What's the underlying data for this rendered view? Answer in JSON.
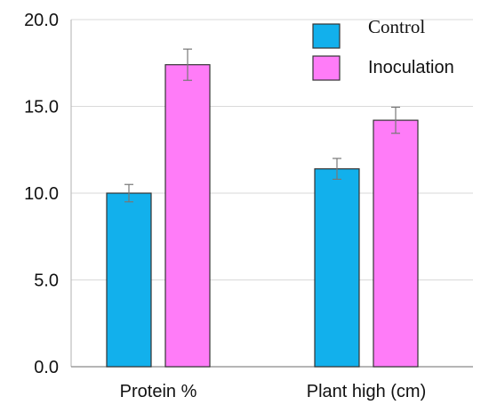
{
  "chart_data": {
    "type": "bar",
    "categories": [
      "Protein %",
      "Plant high (cm)"
    ],
    "series": [
      {
        "name": "Control",
        "values": [
          10.0,
          11.4
        ],
        "errors": [
          0.5,
          0.6
        ],
        "color": "#12b0ec"
      },
      {
        "name": "Inoculation",
        "values": [
          17.4,
          14.2
        ],
        "errors": [
          0.9,
          0.75
        ],
        "color": "#ff7cf8"
      }
    ],
    "yticks": [
      "0.0",
      "5.0",
      "10.0",
      "15.0",
      "20.0"
    ],
    "ylim": [
      0,
      20
    ],
    "grid": true,
    "legend_position": "top-right",
    "title": "",
    "xlabel": "",
    "ylabel": ""
  }
}
